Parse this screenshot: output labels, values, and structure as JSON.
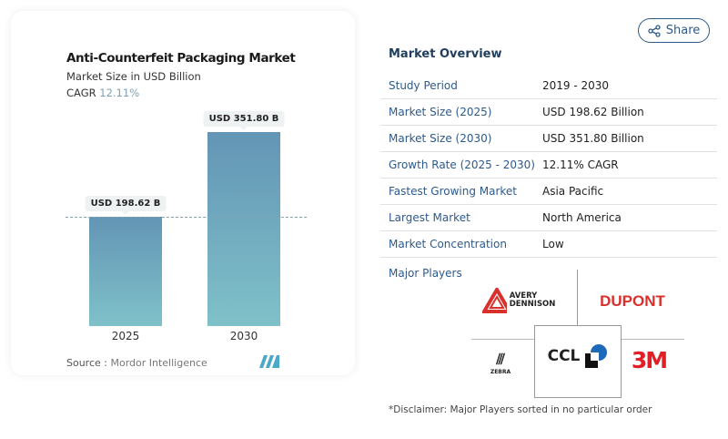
{
  "share_label": "Share",
  "chart_data": {
    "type": "bar",
    "title": "Anti-Counterfeit Packaging Market",
    "subtitle": "Market Size in USD Billion",
    "cagr_label": "CAGR",
    "cagr_value": "12.11%",
    "categories": [
      "2025",
      "2030"
    ],
    "values": [
      198.62,
      351.8
    ],
    "data_labels": [
      "USD 198.62 B",
      "USD 351.80 B"
    ],
    "colors": [
      "#6395b5",
      "#7fc1c9"
    ],
    "source_label": "Source :",
    "source": "Mordor Intelligence"
  },
  "overview": {
    "title": "Market Overview",
    "rows": [
      {
        "k": "Study Period",
        "v": "2019 - 2030"
      },
      {
        "k": "Market Size (2025)",
        "v": "USD 198.62 Billion"
      },
      {
        "k": "Market Size (2030)",
        "v": "USD 351.80 Billion"
      },
      {
        "k": "Growth Rate (2025 - 2030)",
        "v": "12.11% CAGR"
      },
      {
        "k": "Fastest Growing Market",
        "v": "Asia Pacific"
      },
      {
        "k": "Largest Market",
        "v": "North America"
      },
      {
        "k": "Market Concentration",
        "v": "Low"
      }
    ],
    "major_players_label": "Major Players",
    "players": [
      "AVERY DENNISON",
      "DUPONT",
      "ZEBRA",
      "CCL",
      "3M"
    ],
    "disclaimer": "*Disclaimer: Major Players sorted in no particular order"
  }
}
